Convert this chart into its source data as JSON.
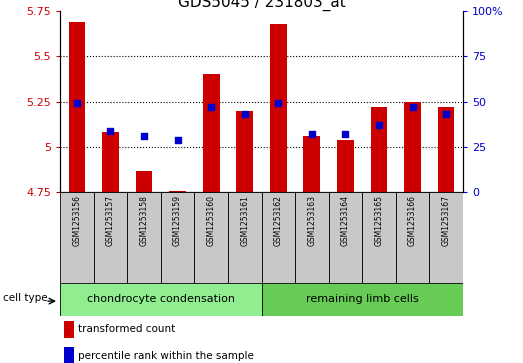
{
  "title": "GDS5045 / 231803_at",
  "samples": [
    "GSM1253156",
    "GSM1253157",
    "GSM1253158",
    "GSM1253159",
    "GSM1253160",
    "GSM1253161",
    "GSM1253162",
    "GSM1253163",
    "GSM1253164",
    "GSM1253165",
    "GSM1253166",
    "GSM1253167"
  ],
  "transformed_counts": [
    5.69,
    5.08,
    4.87,
    4.76,
    5.4,
    5.2,
    5.68,
    5.06,
    5.04,
    5.22,
    5.25,
    5.22
  ],
  "percentile_ranks": [
    49,
    34,
    31,
    29,
    47,
    43,
    49,
    32,
    32,
    37,
    47,
    43
  ],
  "ylim_left": [
    4.75,
    5.75
  ],
  "ylim_right": [
    0,
    100
  ],
  "yticks_left": [
    4.75,
    5.0,
    5.25,
    5.5,
    5.75
  ],
  "yticks_right": [
    0,
    25,
    50,
    75,
    100
  ],
  "ytick_labels_left": [
    "4.75",
    "5",
    "5.25",
    "5.5",
    "5.75"
  ],
  "ytick_labels_right": [
    "0",
    "25",
    "50",
    "75",
    "100%"
  ],
  "bar_color": "#cc0000",
  "dot_color": "#0000cc",
  "base_value": 4.75,
  "grid_lines": [
    5.0,
    5.25,
    5.5
  ],
  "groups": [
    {
      "label": "chondrocyte condensation",
      "start": 0,
      "end": 5,
      "color": "#90ee90"
    },
    {
      "label": "remaining limb cells",
      "start": 6,
      "end": 11,
      "color": "#66cc55"
    }
  ],
  "cell_type_label": "cell type",
  "legend_items": [
    {
      "label": "transformed count",
      "color": "#cc0000"
    },
    {
      "label": "percentile rank within the sample",
      "color": "#0000cc"
    }
  ],
  "sample_bg_color": "#c8c8c8",
  "title_fontsize": 11,
  "tick_fontsize": 8,
  "bar_width": 0.5
}
